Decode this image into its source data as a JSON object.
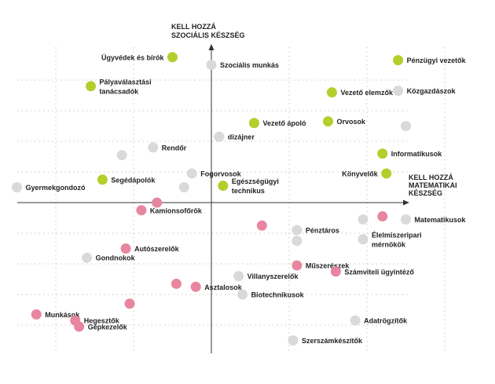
{
  "chart_data": {
    "type": "scatter",
    "title": "",
    "xlabel": [
      "KELL HOZZÁ",
      "MATEMATIKAI",
      "KÉSZSÉG"
    ],
    "ylabel": [
      "KELL HOZZÁ",
      "SZOCIÁLIS KÉSZSÉG"
    ],
    "xlim": [
      -10,
      10
    ],
    "ylim": [
      -10,
      10
    ],
    "grid": true,
    "colors": {
      "green": "#b2cf2c",
      "pink": "#e8859f",
      "gray": "#d9d9d9"
    },
    "points": [
      {
        "label": "Ügyvédek és bírók",
        "x": -1.0,
        "y": 9.5,
        "color": "green",
        "label_side": "left"
      },
      {
        "label": "Szociális munkás",
        "x": 0.0,
        "y": 9.0,
        "color": "gray",
        "label_side": "right"
      },
      {
        "label": "Pénzügyi vezetők",
        "x": 4.8,
        "y": 9.3,
        "color": "green",
        "label_side": "right"
      },
      {
        "label": "Közgazdászok",
        "x": 4.8,
        "y": 7.3,
        "color": "gray",
        "label_side": "right"
      },
      {
        "label": "Vezető elemzők",
        "x": 3.1,
        "y": 7.2,
        "color": "green",
        "label_side": "right"
      },
      {
        "label": "Pályaválasztási\ntanácsadók",
        "x": -3.1,
        "y": 7.6,
        "color": "green",
        "label_side": "right"
      },
      {
        "label": "Orvosok",
        "x": 3.0,
        "y": 5.3,
        "color": "green",
        "label_side": "right"
      },
      {
        "label": "Vezető ápoló",
        "x": 1.1,
        "y": 5.2,
        "color": "green",
        "label_side": "right"
      },
      {
        "label": "",
        "x": 5.0,
        "y": 5.0,
        "color": "gray",
        "label_side": "none"
      },
      {
        "label": "dizájner",
        "x": 0.2,
        "y": 4.3,
        "color": "gray",
        "label_side": "right"
      },
      {
        "label": "Rendőr",
        "x": -1.5,
        "y": 3.6,
        "color": "gray",
        "label_side": "right"
      },
      {
        "label": "",
        "x": -2.3,
        "y": 3.1,
        "color": "gray",
        "label_side": "none"
      },
      {
        "label": "Informatikusok",
        "x": 4.4,
        "y": 3.2,
        "color": "green",
        "label_side": "right"
      },
      {
        "label": "Könyvelők",
        "x": 4.5,
        "y": 1.9,
        "color": "green",
        "label_side": "left"
      },
      {
        "label": "Fogorvosok",
        "x": -0.5,
        "y": 1.9,
        "color": "gray",
        "label_side": "right"
      },
      {
        "label": "Segédápolók",
        "x": -2.8,
        "y": 1.5,
        "color": "green",
        "label_side": "right"
      },
      {
        "label": "Egészségügyi\ntechnikus",
        "x": 0.3,
        "y": 1.1,
        "color": "green",
        "label_side": "right"
      },
      {
        "label": "",
        "x": -0.7,
        "y": 1.0,
        "color": "gray",
        "label_side": "none"
      },
      {
        "label": "Gyermekgondozó",
        "x": -5.0,
        "y": 1.0,
        "color": "gray",
        "label_side": "right"
      },
      {
        "label": "",
        "x": -1.4,
        "y": 0.0,
        "color": "pink",
        "label_side": "none"
      },
      {
        "label": "Kamionsofőrök",
        "x": -1.8,
        "y": -0.5,
        "color": "pink",
        "label_side": "right"
      },
      {
        "label": "",
        "x": 4.4,
        "y": -0.9,
        "color": "pink",
        "label_side": "none"
      },
      {
        "label": "",
        "x": 3.9,
        "y": -1.1,
        "color": "gray",
        "label_side": "none"
      },
      {
        "label": "Matematikusok",
        "x": 5.0,
        "y": -1.1,
        "color": "gray",
        "label_side": "right"
      },
      {
        "label": "",
        "x": 1.3,
        "y": -1.5,
        "color": "pink",
        "label_side": "none"
      },
      {
        "label": "Pénztáros",
        "x": 2.2,
        "y": -1.8,
        "color": "gray",
        "label_side": "right"
      },
      {
        "label": "",
        "x": 2.2,
        "y": -2.5,
        "color": "gray",
        "label_side": "none"
      },
      {
        "label": "Élelmiszeripari\nmérnökök",
        "x": 3.9,
        "y": -2.4,
        "color": "gray",
        "label_side": "right"
      },
      {
        "label": "Autószerelők",
        "x": -2.2,
        "y": -3.0,
        "color": "pink",
        "label_side": "right"
      },
      {
        "label": "Gondnokok",
        "x": -3.2,
        "y": -3.6,
        "color": "gray",
        "label_side": "right"
      },
      {
        "label": "Műszerészek",
        "x": 2.2,
        "y": -4.1,
        "color": "pink",
        "label_side": "right"
      },
      {
        "label": "Számviteli ügyintéző",
        "x": 3.2,
        "y": -4.5,
        "color": "pink",
        "label_side": "right"
      },
      {
        "label": "Villanyszerelők",
        "x": 0.7,
        "y": -4.8,
        "color": "gray",
        "label_side": "right"
      },
      {
        "label": "",
        "x": -0.9,
        "y": -5.3,
        "color": "pink",
        "label_side": "none"
      },
      {
        "label": "Asztalosok",
        "x": -0.4,
        "y": -5.5,
        "color": "pink",
        "label_side": "right"
      },
      {
        "label": "Biotechnikusok",
        "x": 0.8,
        "y": -6.0,
        "color": "gray",
        "label_side": "right"
      },
      {
        "label": "",
        "x": -2.1,
        "y": -6.6,
        "color": "pink",
        "label_side": "none"
      },
      {
        "label": "Munkások",
        "x": -4.5,
        "y": -7.3,
        "color": "pink",
        "label_side": "right"
      },
      {
        "label": "Hegesztők",
        "x": -3.5,
        "y": -7.7,
        "color": "pink",
        "label_side": "right"
      },
      {
        "label": "Gépkezelők",
        "x": -3.4,
        "y": -8.1,
        "color": "pink",
        "label_side": "right"
      },
      {
        "label": "Adatrögzítők",
        "x": 3.7,
        "y": -7.7,
        "color": "gray",
        "label_side": "right"
      },
      {
        "label": "Szerszámkészítők",
        "x": 2.1,
        "y": -9.0,
        "color": "gray",
        "label_side": "right"
      }
    ]
  }
}
